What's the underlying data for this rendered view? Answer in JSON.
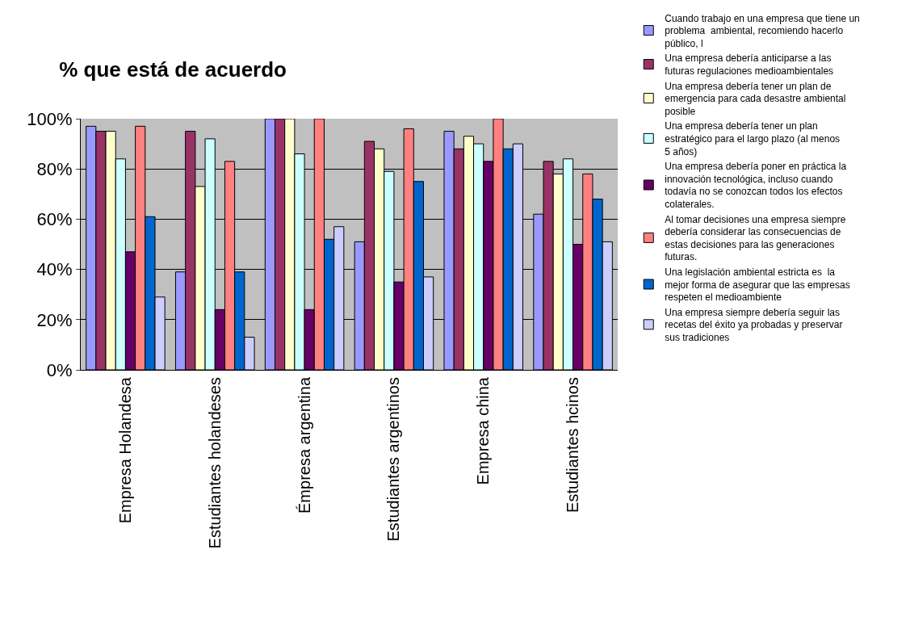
{
  "chart_data": {
    "type": "bar",
    "title": "% que está de acuerdo",
    "categories": [
      "Empresa Holandesa",
      "Estudiantes holandeses",
      "Émpresa argentina",
      "Estudiantes argentinos",
      "Empresa china",
      "Estudiantes hcinos"
    ],
    "series": [
      {
        "name": "Cuando trabajo en una empresa que tiene un problema  ambiental, recomiendo hacerlo público, l",
        "color": "#9999ff",
        "values": [
          97,
          39,
          100,
          51,
          95,
          62
        ]
      },
      {
        "name": "Una empresa debería anticiparse a las futuras regulaciones medioambientales",
        "color": "#993366",
        "values": [
          95,
          95,
          100,
          91,
          88,
          83
        ]
      },
      {
        "name": "Una empresa debería tener un plan de emergencia para cada desastre ambiental posible",
        "color": "#ffffcc",
        "values": [
          95,
          73,
          100,
          88,
          93,
          78
        ]
      },
      {
        "name": "Una empresa debería tener un plan estratégico para el largo plazo (al menos 5 años)",
        "color": "#ccffff",
        "values": [
          84,
          92,
          86,
          79,
          90,
          84
        ]
      },
      {
        "name": "Una empresa debería poner en práctica la innovación tecnológica, incluso cuando todavía no se conozcan todos los efectos colaterales.",
        "color": "#660066",
        "values": [
          47,
          24,
          24,
          35,
          83,
          50
        ]
      },
      {
        "name": "Al tomar decisiones una empresa siempre debería considerar las consecuencias de estas decisiones para las generaciones futuras.",
        "color": "#ff8080",
        "values": [
          97,
          83,
          100,
          96,
          100,
          78
        ]
      },
      {
        "name": "Una legislación ambiental estricta es  la mejor forma de asegurar que las empresas respeten el medioambiente",
        "color": "#0066cc",
        "values": [
          61,
          39,
          52,
          75,
          88,
          68
        ]
      },
      {
        "name": "Una empresa siempre debería seguir las recetas del éxito ya probadas y preservar sus tradiciones",
        "color": "#ccccff",
        "values": [
          29,
          13,
          57,
          37,
          90,
          51
        ]
      }
    ],
    "ylim": [
      0,
      100
    ],
    "yticks": [
      {
        "value": 0,
        "label": "0%"
      },
      {
        "value": 20,
        "label": "20%"
      },
      {
        "value": 40,
        "label": "40%"
      },
      {
        "value": 60,
        "label": "60%"
      },
      {
        "value": 80,
        "label": "80%"
      },
      {
        "value": 100,
        "label": "100%"
      }
    ],
    "grid": "y",
    "legend": "right"
  }
}
